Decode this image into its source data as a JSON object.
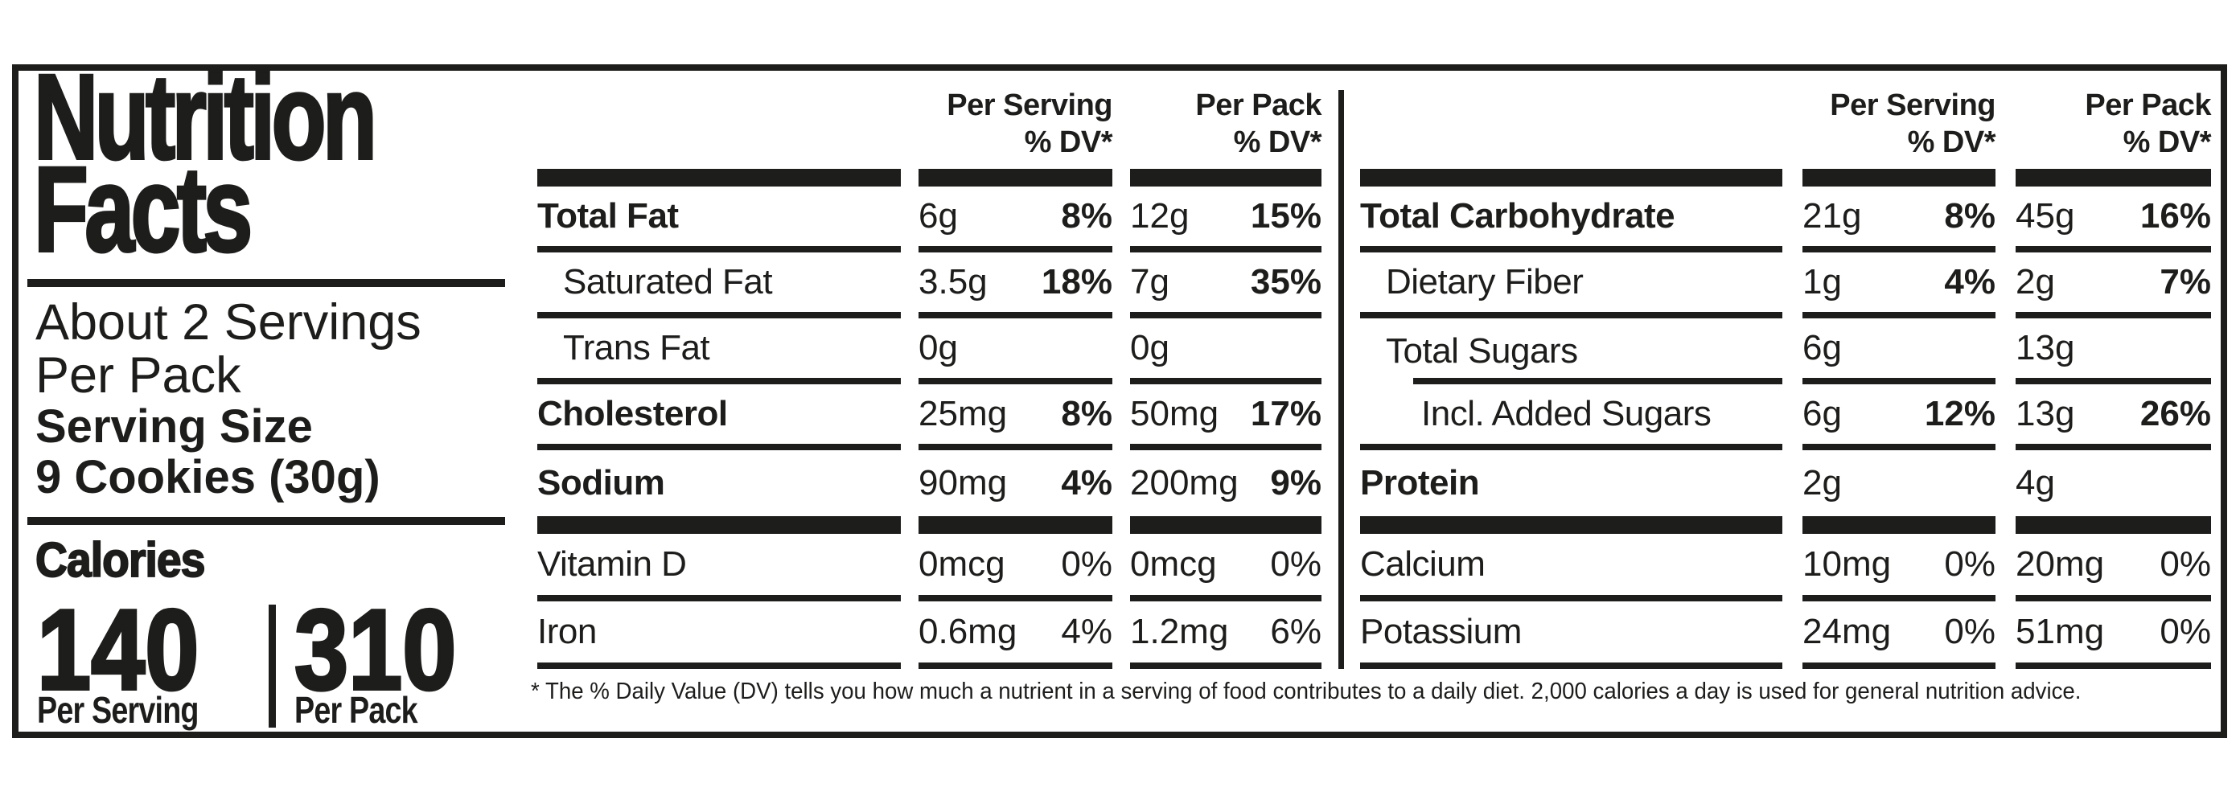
{
  "label": {
    "title_line1": "Nutrition",
    "title_line2": "Facts",
    "servings_statement_line1": "About 2 Servings",
    "servings_statement_line2": "Per Pack",
    "serving_size_label": "Serving Size",
    "serving_size_value": "9 Cookies (30g)",
    "calories": {
      "label": "Calories",
      "per_serving_value": "140",
      "per_serving_caption": "Per Serving",
      "per_pack_value": "310",
      "per_pack_caption": "Per Pack"
    },
    "column_headers": {
      "per_serving": "Per Serving",
      "per_pack": "Per Pack",
      "dv": "% DV*"
    },
    "tables": [
      {
        "rows": [
          {
            "name": "Total Fat",
            "serving_amount": "6g",
            "serving_dv": "8%",
            "pack_amount": "12g",
            "pack_dv": "15%"
          },
          {
            "name": "Saturated Fat",
            "serving_amount": "3.5g",
            "serving_dv": "18%",
            "pack_amount": "7g",
            "pack_dv": "35%"
          },
          {
            "name": "Trans Fat",
            "serving_amount": "0g",
            "serving_dv": "",
            "pack_amount": "0g",
            "pack_dv": ""
          },
          {
            "name": "Cholesterol",
            "serving_amount": "25mg",
            "serving_dv": "8%",
            "pack_amount": "50mg",
            "pack_dv": "17%"
          },
          {
            "name": "Sodium",
            "serving_amount": "90mg",
            "serving_dv": "4%",
            "pack_amount": "200mg",
            "pack_dv": "9%"
          },
          {
            "name": "Vitamin D",
            "serving_amount": "0mcg",
            "serving_dv": "0%",
            "pack_amount": "0mcg",
            "pack_dv": "0%"
          },
          {
            "name": "Iron",
            "serving_amount": "0.6mg",
            "serving_dv": "4%",
            "pack_amount": "1.2mg",
            "pack_dv": "6%"
          }
        ]
      },
      {
        "rows": [
          {
            "name": "Total Carbohydrate",
            "serving_amount": "21g",
            "serving_dv": "8%",
            "pack_amount": "45g",
            "pack_dv": "16%"
          },
          {
            "name": "Dietary Fiber",
            "serving_amount": "1g",
            "serving_dv": "4%",
            "pack_amount": "2g",
            "pack_dv": "7%"
          },
          {
            "name": "Total Sugars",
            "serving_amount": "6g",
            "serving_dv": "",
            "pack_amount": "13g",
            "pack_dv": ""
          },
          {
            "name": "Incl. Added Sugars",
            "serving_amount": "6g",
            "serving_dv": "12%",
            "pack_amount": "13g",
            "pack_dv": "26%"
          },
          {
            "name": "Protein",
            "serving_amount": "2g",
            "serving_dv": "",
            "pack_amount": "4g",
            "pack_dv": ""
          },
          {
            "name": "Calcium",
            "serving_amount": "10mg",
            "serving_dv": "0%",
            "pack_amount": "20mg",
            "pack_dv": "0%"
          },
          {
            "name": "Potassium",
            "serving_amount": "24mg",
            "serving_dv": "0%",
            "pack_amount": "51mg",
            "pack_dv": "0%"
          }
        ]
      }
    ],
    "footnote": "* The % Daily Value (DV) tells you how much a nutrient in a serving of food contributes to a daily diet. 2,000 calories a day is used for general nutrition advice.",
    "colors": {
      "ink": "#1d1d1b",
      "background": "#ffffff"
    }
  }
}
